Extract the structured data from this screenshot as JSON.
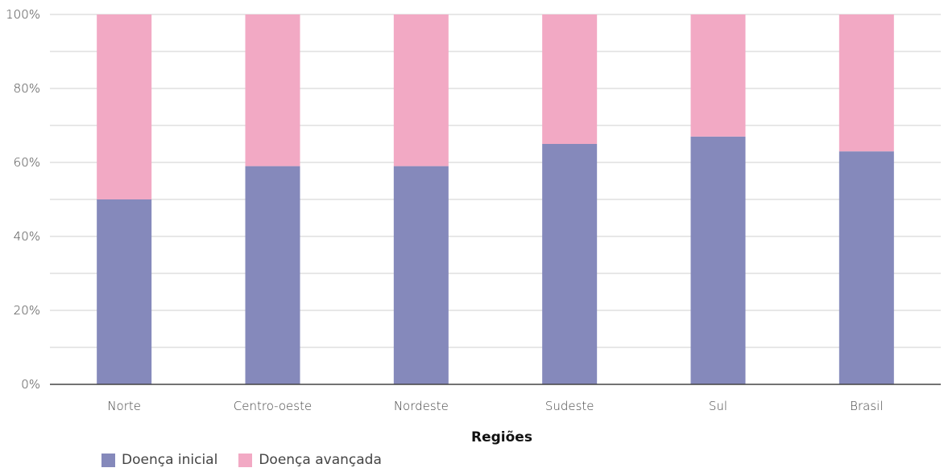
{
  "chart_data": {
    "type": "bar",
    "stacked": true,
    "categories": [
      "Norte",
      "Centro-oeste",
      "Nordeste",
      "Sudeste",
      "Sul",
      "Brasil"
    ],
    "series": [
      {
        "name": "Doença inicial",
        "color": "#8589bb",
        "values": [
          50,
          59,
          59,
          65,
          67,
          63
        ]
      },
      {
        "name": "Doença avançada",
        "color": "#f2a9c4",
        "values": [
          50,
          41,
          41,
          35,
          33,
          37
        ]
      }
    ],
    "xlabel": "Regiões",
    "ylabel": "",
    "ylim": [
      0,
      100
    ],
    "yticks": [
      "0%",
      "20%",
      "40%",
      "60%",
      "80%",
      "100%"
    ],
    "grid": true,
    "legend_position": "bottom-left"
  }
}
